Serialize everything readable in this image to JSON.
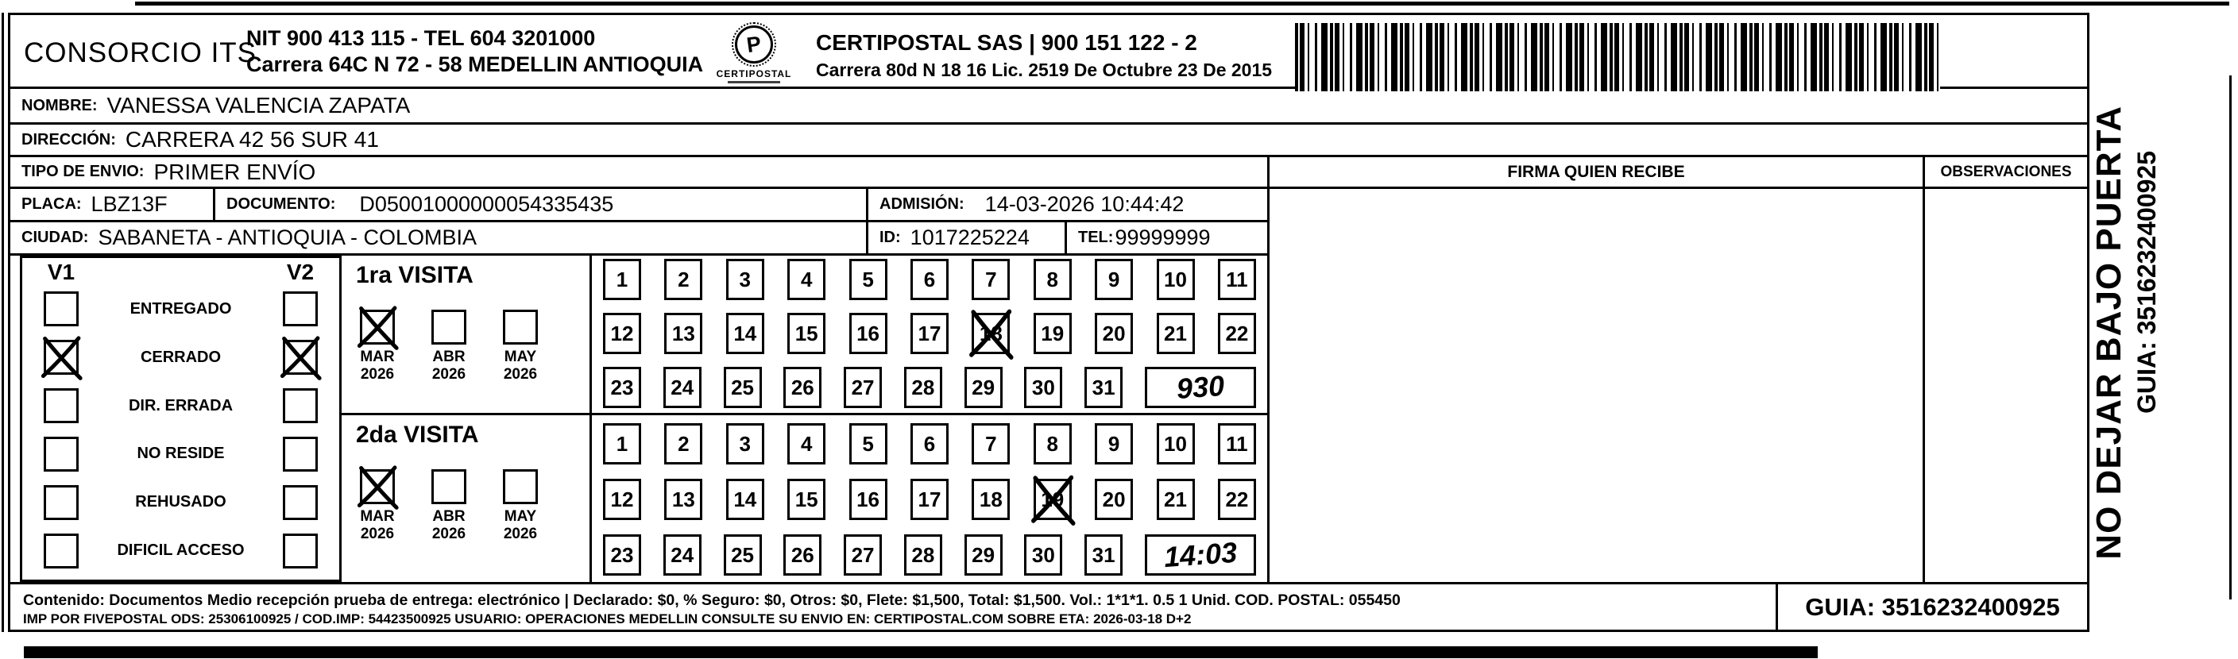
{
  "page": {
    "ink": "#000000",
    "paper": "#ffffff"
  },
  "header": {
    "company_name": "CONSORCIO ITS",
    "company_nit_line": "NIT 900 413 115 - TEL 604 3201000",
    "company_address_line": "Carrera 64C N 72 - 58 MEDELLIN ANTIOQUIA",
    "logo_caption": "CERTIPOSTAL",
    "logo_glyph": "P",
    "postal_title": "CERTIPOSTAL SAS | 900 151 122 - 2",
    "postal_license_line": "Carrera 80d N 18 16  Lic. 2519 De Octubre 23 De 2015"
  },
  "shipment": {
    "nombre": {
      "label": "NOMBRE:",
      "value": "VANESSA VALENCIA ZAPATA"
    },
    "direccion": {
      "label": "DIRECCIÓN:",
      "value": "CARRERA 42 56 SUR 41"
    },
    "tipo_envio": {
      "label": "TIPO DE ENVIO:",
      "value": "PRIMER ENVÍO"
    },
    "placa": {
      "label": "PLACA:",
      "value": "LBZ13F"
    },
    "documento": {
      "label": "DOCUMENTO:",
      "value": "D05001000000054335435"
    },
    "admision": {
      "label": "ADMISIÓN:",
      "value": "14-03-2026 10:44:42"
    },
    "ciudad": {
      "label": "CIUDAD:",
      "value": "SABANETA - ANTIOQUIA - COLOMBIA"
    },
    "id": {
      "label": "ID:",
      "value": "1017225224"
    },
    "tel": {
      "label": "TEL:",
      "value": "99999999"
    }
  },
  "columns": {
    "firma": "FIRMA QUIEN RECIBE",
    "observaciones": "OBSERVACIONES"
  },
  "status": {
    "v1_header": "V1",
    "v2_header": "V2",
    "options": [
      {
        "label": "ENTREGADO",
        "v1_checked": false,
        "v2_checked": false
      },
      {
        "label": "CERRADO",
        "v1_checked": true,
        "v2_checked": true
      },
      {
        "label": "DIR. ERRADA",
        "v1_checked": false,
        "v2_checked": false
      },
      {
        "label": "NO RESIDE",
        "v1_checked": false,
        "v2_checked": false
      },
      {
        "label": "REHUSADO",
        "v1_checked": false,
        "v2_checked": false
      },
      {
        "label": "DIFICIL ACCESO",
        "v1_checked": false,
        "v2_checked": false
      }
    ]
  },
  "visits": [
    {
      "title": "1ra VISITA",
      "months": [
        {
          "month": "MAR",
          "year": "2026",
          "checked": true
        },
        {
          "month": "ABR",
          "year": "2026",
          "checked": false
        },
        {
          "month": "MAY",
          "year": "2026",
          "checked": false
        }
      ],
      "day_min": 1,
      "day_max": 31,
      "crossed_day": 18,
      "handwritten_time": "930"
    },
    {
      "title": "2da VISITA",
      "months": [
        {
          "month": "MAR",
          "year": "2026",
          "checked": true
        },
        {
          "month": "ABR",
          "year": "2026",
          "checked": false
        },
        {
          "month": "MAY",
          "year": "2026",
          "checked": false
        }
      ],
      "day_min": 1,
      "day_max": 31,
      "crossed_day": 19,
      "handwritten_time": "14:03"
    }
  ],
  "side": {
    "warning": "NO DEJAR BAJO PUERTA",
    "guia": "GUIA: 3516232400925"
  },
  "footer": {
    "line1": "Contenido: Documentos Medio recepción prueba de entrega: electrónico | Declarado: $0, % Seguro: $0, Otros: $0, Flete: $1,500, Total: $1,500. Vol.: 1*1*1. 0.5  1 Unid. COD. POSTAL: 055450",
    "line2": "IMP POR FIVEPOSTAL ODS: 25306100925 / COD.IMP: 54423500925 USUARIO: OPERACIONES MEDELLIN CONSULTE SU ENVIO EN: CERTIPOSTAL.COM SOBRE ETA: 2026-03-18 D+2",
    "guia": "GUIA: 3516232400925"
  }
}
